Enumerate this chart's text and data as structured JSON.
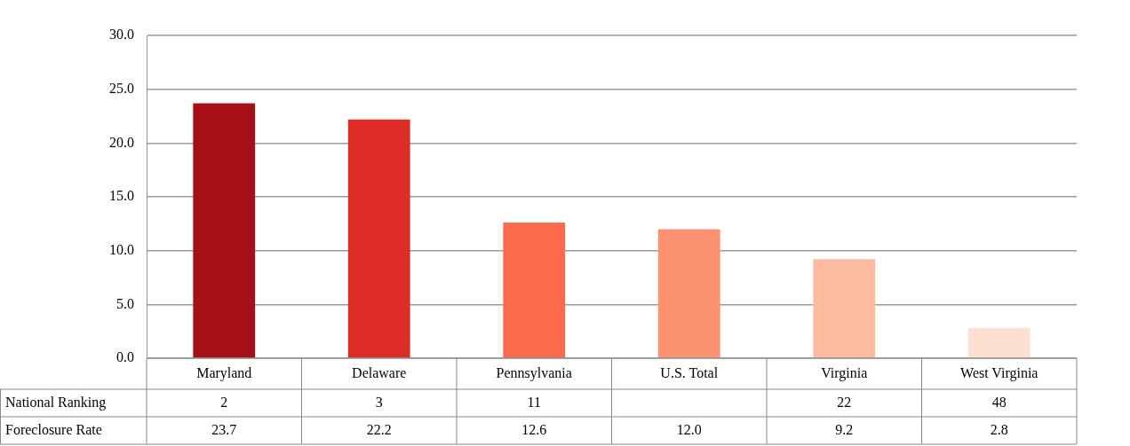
{
  "chart_data": {
    "type": "bar",
    "categories": [
      "Maryland",
      "Delaware",
      "Pennsylvania",
      "U.S. Total",
      "Virginia",
      "West Virginia"
    ],
    "series": [
      {
        "name": "Foreclosure Rate",
        "values": [
          23.7,
          22.2,
          12.6,
          12.0,
          9.2,
          2.8
        ],
        "colors": [
          "#a50f15",
          "#de2d26",
          "#fb6a4a",
          "#fc9272",
          "#fcbba1",
          "#fee0d2"
        ],
        "value_labels": [
          "23.7",
          "22.2",
          "12.6",
          "12.0",
          "9.2",
          "2.8"
        ]
      },
      {
        "name": "National Ranking",
        "type": "other",
        "values": [
          null,
          null,
          null,
          null,
          null,
          null
        ],
        "value_labels": [
          "2",
          "3",
          "11",
          null,
          "22",
          "48"
        ]
      }
    ],
    "ylim": [
      0,
      30
    ],
    "yticks": [
      {
        "value": 0,
        "label": "0.0"
      },
      {
        "value": 5,
        "label": "5.0"
      },
      {
        "value": 10,
        "label": "10.0"
      },
      {
        "value": 15,
        "label": "15.0"
      },
      {
        "value": 20,
        "label": "20.0"
      },
      {
        "value": 25,
        "label": "25.0"
      },
      {
        "value": 30,
        "label": "30.0"
      }
    ],
    "grid": "y",
    "legend": false
  }
}
